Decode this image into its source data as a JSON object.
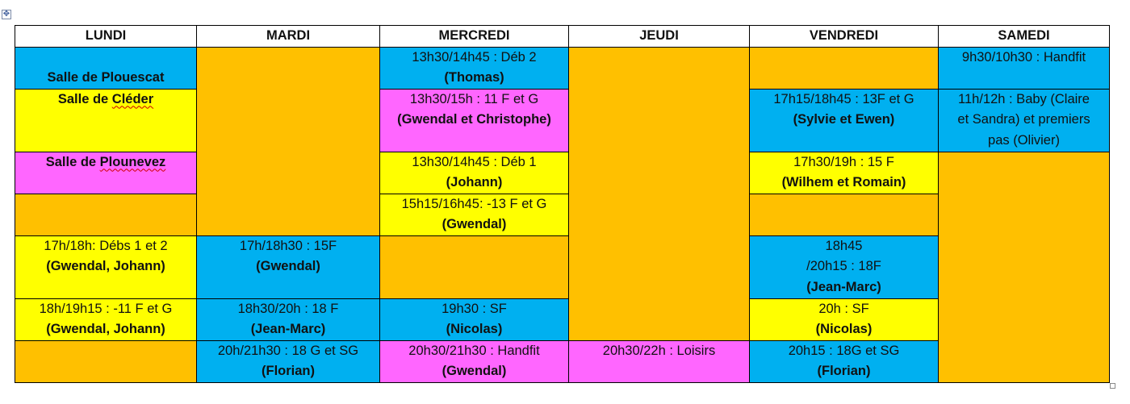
{
  "days": [
    "LUNDI",
    "MARDI",
    "MERCREDI",
    "JEUDI",
    "VENDREDI",
    "SAMEDI"
  ],
  "legend": {
    "plouescat": "Salle de Plouescat",
    "cleder_prefix": "Salle de ",
    "cleder_name": "Cléder",
    "plounevez_prefix": "Salle de ",
    "plounevez_name": "Plounevez"
  },
  "sessions": {
    "mer_deb2": {
      "time": "13h30/14h45  : Déb 2",
      "coach": "(Thomas)"
    },
    "sam_handfit": {
      "time": "9h30/10h30  : Handfit"
    },
    "mer_11fg": {
      "time": "13h30/15h  : 11 F et G",
      "coach": "(Gwendal et Christophe)"
    },
    "ven_13fg": {
      "time": "17h15/18h45  : 13F et G",
      "coach": "(Sylvie et Ewen)"
    },
    "sam_baby": {
      "line1": "11h/12h : Baby (Claire",
      "line2": "et Sandra) et premiers",
      "line3": "pas (Olivier)"
    },
    "mer_deb1": {
      "time": "13h30/14h45  : Déb 1",
      "coach": "(Johann)"
    },
    "ven_15f": {
      "time": "17h30/19h : 15 F",
      "coach": "(Wilhem et Romain)"
    },
    "mer_13fg": {
      "time": "15h15/16h45:  -13 F et G",
      "coach": "(Gwendal)"
    },
    "lun_debs": {
      "time": "17h/18h: Débs 1 et 2",
      "coach": "(Gwendal, Johann)"
    },
    "mar_15f": {
      "time": "17h/18h30  : 15F",
      "coach": "(Gwendal)"
    },
    "ven_18f": {
      "line1": "18h45",
      "line2": "/20h15 : 18F",
      "coach": "(Jean-Marc)"
    },
    "lun_11fg": {
      "time": "18h/19h15 : -11 F et G",
      "coach": "(Gwendal, Johann)"
    },
    "mar_18f": {
      "time": "18h30/20h  : 18 F",
      "coach": "(Jean-Marc)"
    },
    "mer_sf": {
      "time": "19h30  : SF",
      "coach": "(Nicolas)"
    },
    "ven_sf": {
      "time": "20h : SF",
      "coach": "(Nicolas)"
    },
    "mar_18gsg": {
      "time": "20h/21h30  : 18 G et SG",
      "coach": "(Florian)"
    },
    "mer_handfit": {
      "time": "20h30/21h30  : Handfit",
      "coach": "(Gwendal)"
    },
    "jeu_loisirs": {
      "time": "20h30/22h  : Loisirs"
    },
    "ven_18gsg": {
      "time": "20h15 : 18G et SG",
      "coach": "(Florian)"
    }
  },
  "colors": {
    "plouescat": "#00b0f0",
    "cleder": "#ffff00",
    "plounevez": "#ff66ff",
    "free": "#ffc000"
  }
}
